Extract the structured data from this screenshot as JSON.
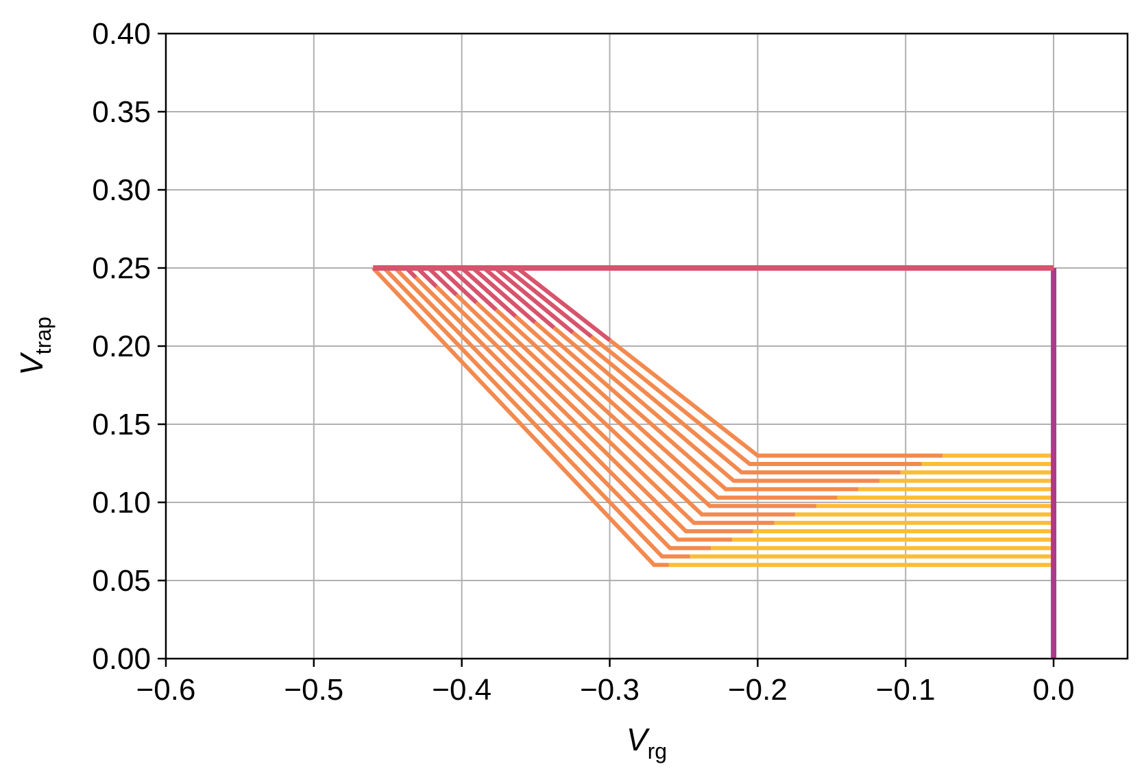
{
  "chart_data": {
    "type": "line",
    "title": "",
    "xlabel": "V",
    "xlabel_sub": "rg",
    "ylabel": "V",
    "ylabel_sub": "trap",
    "xlim": [
      -0.6,
      0.05
    ],
    "ylim": [
      0.0,
      0.4
    ],
    "xticks": [
      -0.6,
      -0.5,
      -0.4,
      -0.3,
      -0.2,
      -0.1,
      0.0
    ],
    "xtick_labels": [
      "−0.6",
      "−0.5",
      "−0.4",
      "−0.3",
      "−0.2",
      "−0.1",
      "0.0"
    ],
    "yticks": [
      0.0,
      0.05,
      0.1,
      0.15,
      0.2,
      0.25,
      0.3,
      0.35,
      0.4
    ],
    "ytick_labels": [
      "0.00",
      "0.05",
      "0.10",
      "0.15",
      "0.20",
      "0.25",
      "0.30",
      "0.35",
      "0.40"
    ],
    "grid": true,
    "legend": "none",
    "colors": {
      "purple": "#b0388a",
      "rose": "#d6546e",
      "orange": "#f28a4f",
      "yellow": "#fbbd36"
    },
    "family": {
      "n_curves": 14,
      "top_level": 0.25,
      "left_start_min": -0.46,
      "left_start_step": 0.0075,
      "lower_level_min": 0.06,
      "lower_level_step": 0.00538,
      "diag_end_min": -0.27,
      "diag_end_max": -0.2,
      "transition_min": -0.26,
      "transition_max": -0.075,
      "right_end": 0.0
    },
    "series": [
      {
        "color": "purple",
        "points": [
          [
            0.0,
            0.0
          ],
          [
            0.0,
            0.25
          ]
        ]
      },
      {
        "color": "rose",
        "points": [
          [
            -0.46,
            0.25
          ],
          [
            0.0,
            0.25
          ]
        ]
      }
    ]
  }
}
